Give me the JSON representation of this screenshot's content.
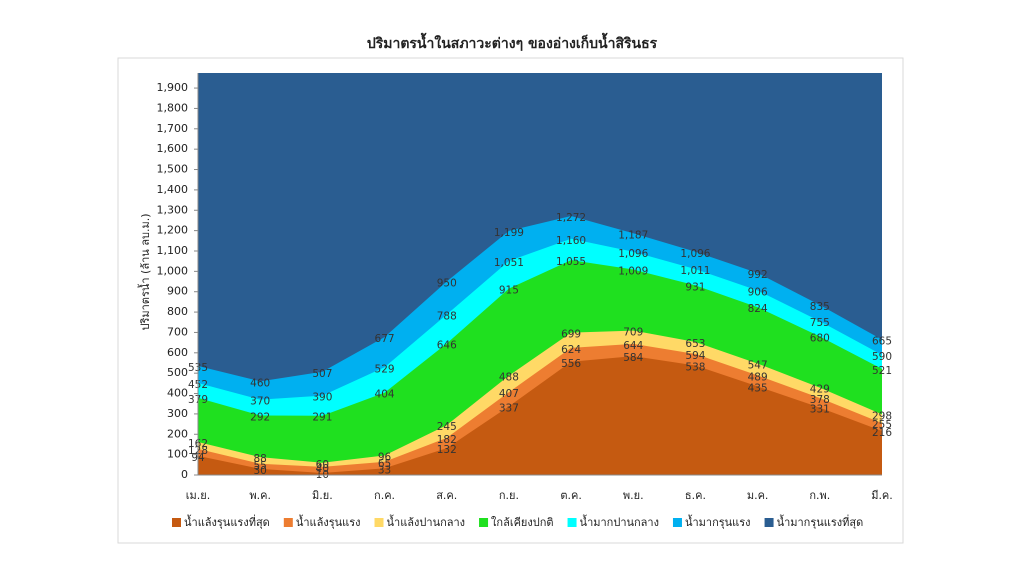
{
  "chart_data": {
    "type": "area",
    "title": "ปริมาตรน้ำในสภาวะต่างๆ ของอ่างเก็บน้ำสิรินธร",
    "y_label": "ปริมาตรน้ำ (ล้าน ลบ.ม.)",
    "categories": [
      "เม.ย.",
      "พ.ค.",
      "มิ.ย.",
      "ก.ค.",
      "ส.ค.",
      "ก.ย.",
      "ต.ค.",
      "พ.ย.",
      "ธ.ค.",
      "ม.ค.",
      "ก.พ.",
      "มี.ค."
    ],
    "ylim": [
      0,
      1974
    ],
    "yticks": [
      0,
      100,
      200,
      300,
      400,
      500,
      600,
      700,
      800,
      900,
      {
        "value": 1000,
        "label": "1,000"
      },
      {
        "value": 1100,
        "label": "1,100"
      },
      {
        "value": 1200,
        "label": "1,200"
      },
      {
        "value": 1300,
        "label": "1,300"
      },
      {
        "value": 1400,
        "label": "1,400"
      },
      {
        "value": 1500,
        "label": "1,500"
      },
      {
        "value": 1600,
        "label": "1,600"
      },
      {
        "value": 1700,
        "label": "1,700"
      },
      {
        "value": 1800,
        "label": "1,800"
      },
      {
        "value": 1900,
        "label": "1,900"
      }
    ],
    "series": [
      {
        "name": "น้ำแล้งรุนแรงที่สุด",
        "color": "#c55a11",
        "values": [
          94,
          30,
          10,
          33,
          132,
          337,
          556,
          584,
          538,
          435,
          331,
          216
        ]
      },
      {
        "name": "น้ำแล้งรุนแรง",
        "color": "#ed7d31",
        "values": [
          128,
          55,
          40,
          65,
          182,
          407,
          624,
          644,
          594,
          489,
          378,
          255
        ]
      },
      {
        "name": "น้ำแล้งปานกลาง",
        "color": "#ffd966",
        "values": [
          162,
          88,
          60,
          96,
          245,
          488,
          699,
          709,
          653,
          547,
          429,
          298
        ]
      },
      {
        "name": "ใกล้เคียงปกติ",
        "color": "#1fe01f",
        "values": [
          379,
          292,
          291,
          404,
          646,
          915,
          1055,
          1009,
          931,
          824,
          680,
          521
        ],
        "value_labels": [
          "379",
          "292",
          "291",
          "404",
          "646",
          "915",
          "1,055",
          "1,009",
          "931",
          "824",
          "680",
          "521"
        ]
      },
      {
        "name": "น้ำมากปานกลาง",
        "color": "#00ffff",
        "values": [
          452,
          370,
          390,
          529,
          788,
          1051,
          1160,
          1096,
          1011,
          906,
          755,
          590
        ],
        "value_labels": [
          "452",
          "370",
          "390",
          "529",
          "788",
          "1,051",
          "1,160",
          "1,096",
          "1,011",
          "906",
          "755",
          "590"
        ]
      },
      {
        "name": "น้ำมากรุนแรง",
        "color": "#00b0f0",
        "values": [
          535,
          460,
          507,
          677,
          950,
          1199,
          1272,
          1187,
          1096,
          992,
          835,
          665
        ],
        "value_labels": [
          "535",
          "460",
          "507",
          "677",
          "950",
          "1,199",
          "1,272",
          "1,187",
          "1,096",
          "992",
          "835",
          "665"
        ]
      },
      {
        "name": "น้ำมากรุนแรงที่สุด",
        "color": "#2a5d91",
        "values": [
          1974,
          1974,
          1974,
          1974,
          1974,
          1974,
          1974,
          1974,
          1974,
          1974,
          1974,
          1974
        ]
      }
    ],
    "labeled_series": 6
  }
}
